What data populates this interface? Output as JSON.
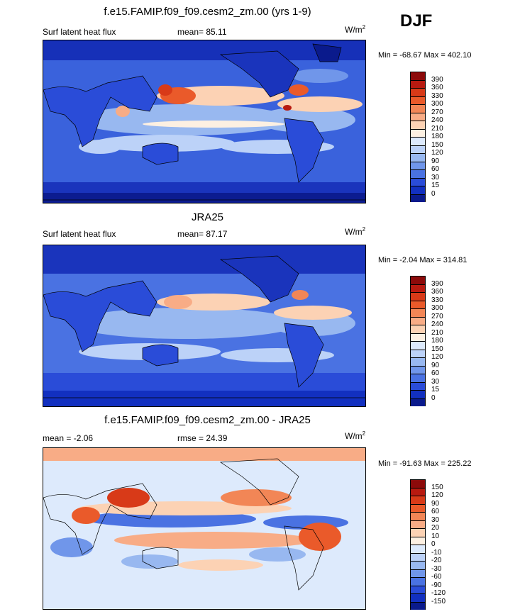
{
  "season": "DJF",
  "panels": [
    {
      "title": "f.e15.FAMIP.f09_f09.cesm2_zm.00 (yrs 1-9)",
      "left_label": "Surf latent heat flux",
      "stat_label": "mean=  85.11",
      "units": "W/m",
      "units_sup": "2",
      "minmax": "Min = -68.67 Max = 402.10",
      "levels": [
        "390",
        "360",
        "330",
        "300",
        "270",
        "240",
        "210",
        "180",
        "150",
        "120",
        "90",
        "60",
        "30",
        "15",
        "0"
      ],
      "colors": [
        "#8c0a0a",
        "#b81a10",
        "#d83a18",
        "#ea5a2a",
        "#f28656",
        "#f8ac86",
        "#fcd2b4",
        "#fdf0e2",
        "#ddeafc",
        "#bcd2f8",
        "#98b8f0",
        "#7096ea",
        "#4a72e2",
        "#2a4cd8",
        "#1230c0",
        "#0a1a8c"
      ]
    },
    {
      "title": "JRA25",
      "left_label": "Surf latent heat flux",
      "stat_label": "mean=  87.17",
      "units": "W/m",
      "units_sup": "2",
      "minmax": "Min =  -2.04 Max = 314.81",
      "levels": [
        "390",
        "360",
        "330",
        "300",
        "270",
        "240",
        "210",
        "180",
        "150",
        "120",
        "90",
        "60",
        "30",
        "15",
        "0"
      ],
      "colors": [
        "#8c0a0a",
        "#b81a10",
        "#d83a18",
        "#ea5a2a",
        "#f28656",
        "#f8ac86",
        "#fcd2b4",
        "#fdf0e2",
        "#ddeafc",
        "#bcd2f8",
        "#98b8f0",
        "#7096ea",
        "#4a72e2",
        "#2a4cd8",
        "#1230c0",
        "#0a1a8c"
      ]
    },
    {
      "title": "f.e15.FAMIP.f09_f09.cesm2_zm.00 - JRA25",
      "left_label": "mean =  -2.06",
      "stat_label": "rmse =  24.39",
      "units": "W/m",
      "units_sup": "2",
      "minmax": "Min = -91.63 Max = 225.22",
      "levels": [
        "150",
        "120",
        "90",
        "60",
        "30",
        "20",
        "10",
        "0",
        "-10",
        "-20",
        "-30",
        "-60",
        "-90",
        "-120",
        "-150"
      ],
      "colors": [
        "#8c0a0a",
        "#b81a10",
        "#d83a18",
        "#ea5a2a",
        "#f28656",
        "#f8ac86",
        "#fcd2b4",
        "#fdf0e2",
        "#ddeafc",
        "#bcd2f8",
        "#98b8f0",
        "#7096ea",
        "#4a72e2",
        "#2a4cd8",
        "#1230c0",
        "#0a1a8c"
      ]
    }
  ],
  "chart_data": [
    {
      "type": "heatmap",
      "title": "f.e15.FAMIP.f09_f09.cesm2_zm.00 (yrs 1-9)",
      "variable": "Surf latent heat flux",
      "units": "W/m2",
      "mean": 85.11,
      "min": -68.67,
      "max": 402.1,
      "contour_levels": [
        0,
        15,
        30,
        60,
        90,
        120,
        150,
        180,
        210,
        240,
        270,
        300,
        330,
        360,
        390
      ]
    },
    {
      "type": "heatmap",
      "title": "JRA25",
      "variable": "Surf latent heat flux",
      "units": "W/m2",
      "mean": 87.17,
      "min": -2.04,
      "max": 314.81,
      "contour_levels": [
        0,
        15,
        30,
        60,
        90,
        120,
        150,
        180,
        210,
        240,
        270,
        300,
        330,
        360,
        390
      ]
    },
    {
      "type": "heatmap",
      "title": "f.e15.FAMIP.f09_f09.cesm2_zm.00 - JRA25",
      "units": "W/m2",
      "mean": -2.06,
      "rmse": 24.39,
      "min": -91.63,
      "max": 225.22,
      "contour_levels": [
        -150,
        -120,
        -90,
        -60,
        -30,
        -20,
        -10,
        0,
        10,
        20,
        30,
        60,
        90,
        120,
        150
      ]
    }
  ]
}
